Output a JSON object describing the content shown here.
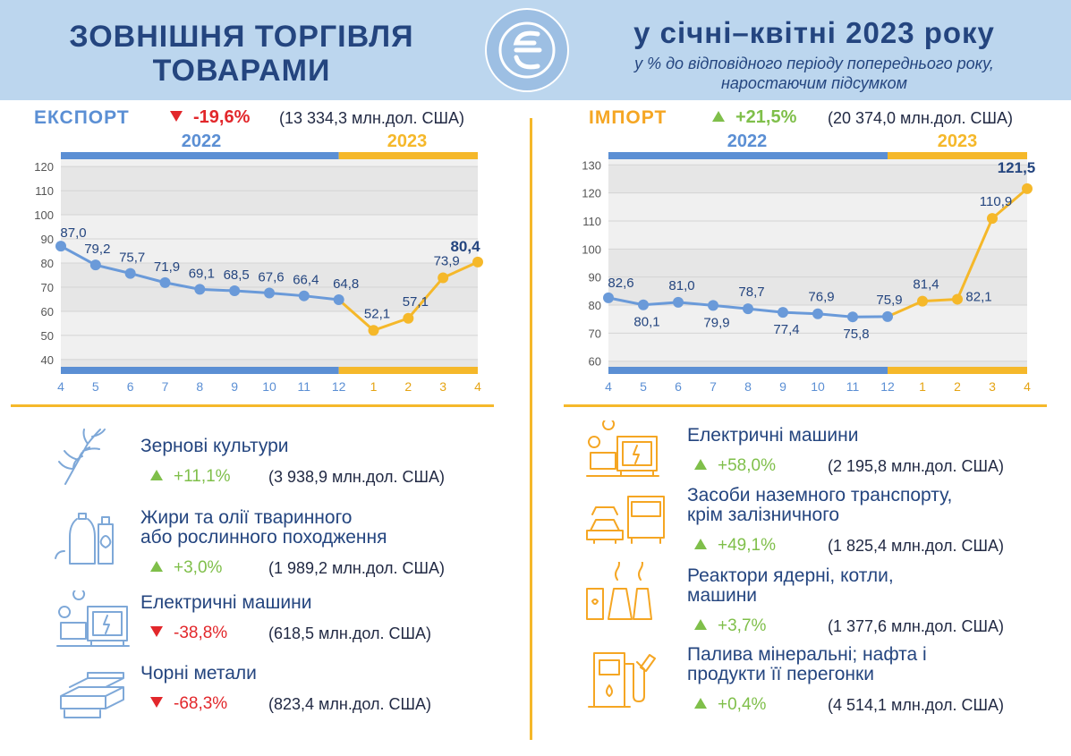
{
  "header": {
    "title_line1": "ЗОВНІШНЯ ТОРГІВЛЯ",
    "title_line2": "ТОВАРАМИ",
    "period": "у січні–квітні 2023 року",
    "subtitle_line1": "у % до відповідного періоду попереднього року,",
    "subtitle_line2": "наростаючим підсумком"
  },
  "colors": {
    "blue": "#5b8fd4",
    "orange": "#f5b82a",
    "navy": "#24457f",
    "red": "#e2272b",
    "green": "#7fbf4a"
  },
  "export": {
    "title": "ЕКСПОРТ",
    "change": "-19,6%",
    "total": "(13 334,3 млн.дол. США)",
    "year_2022": "2022",
    "year_2023": "2023",
    "items": [
      {
        "name_line1": "Зернові культури",
        "name_line2": "",
        "direction": "up",
        "pct": "+11,1%",
        "value": "(3 938,9 млн.дол. США)",
        "icon": "wheat-icon"
      },
      {
        "name_line1": "Жири та олії тваринного",
        "name_line2": "або рослинного походження",
        "direction": "up",
        "pct": "+3,0%",
        "value": "(1 989,2 млн.дол. США)",
        "icon": "oil-bottle-icon"
      },
      {
        "name_line1": "Електричні машини",
        "name_line2": "",
        "direction": "down",
        "pct": "-38,8%",
        "value": "(618,5 млн.дол. США)",
        "icon": "generator-icon"
      },
      {
        "name_line1": "Чорні метали",
        "name_line2": "",
        "direction": "down",
        "pct": "-68,3%",
        "value": "(823,4 млн.дол. США)",
        "icon": "metal-beams-icon"
      }
    ]
  },
  "import": {
    "title": "ІМПОРТ",
    "change": "+21,5%",
    "total": "(20 374,0 млн.дол. США)",
    "year_2022": "2022",
    "year_2023": "2023",
    "items": [
      {
        "name_line1": "Електричні машини",
        "name_line2": "",
        "direction": "up",
        "pct": "+58,0%",
        "value": "(2 195,8 млн.дол. США)",
        "icon": "generator-icon"
      },
      {
        "name_line1": "Засоби наземного транспорту,",
        "name_line2": "крім залізничного",
        "direction": "up",
        "pct": "+49,1%",
        "value": "(1 825,4 млн.дол. США)",
        "icon": "vehicles-icon"
      },
      {
        "name_line1": "Реактори ядерні, котли,",
        "name_line2": "машини",
        "direction": "up",
        "pct": "+3,7%",
        "value": "(1 377,6 млн.дол. США)",
        "icon": "power-plant-icon"
      },
      {
        "name_line1": "Палива мінеральні; нафта і",
        "name_line2": "продукти її перегонки",
        "direction": "up",
        "pct": "+0,4%",
        "value": "(4 514,1 млн.дол. США)",
        "icon": "fuel-pump-icon"
      }
    ]
  },
  "chart_data": [
    {
      "type": "line",
      "name": "export",
      "x": [
        "4",
        "5",
        "6",
        "7",
        "8",
        "9",
        "10",
        "11",
        "12",
        "1",
        "2",
        "3",
        "4"
      ],
      "values": [
        87.0,
        79.2,
        75.7,
        71.9,
        69.1,
        68.5,
        67.6,
        66.4,
        64.8,
        52.1,
        57.1,
        73.9,
        80.4
      ],
      "labels": [
        "87,0",
        "79,2",
        "75,7",
        "71,9",
        "69,1",
        "68,5",
        "67,6",
        "66,4",
        "64,8",
        "52,1",
        "57,1",
        "73,9",
        "80,4"
      ],
      "year_split_index": 8,
      "yticks": [
        "40",
        "50",
        "60",
        "70",
        "80",
        "90",
        "100",
        "110",
        "120"
      ],
      "ylim": [
        37,
        123
      ],
      "grid": true
    },
    {
      "type": "line",
      "name": "import",
      "x": [
        "4",
        "5",
        "6",
        "7",
        "8",
        "9",
        "10",
        "11",
        "12",
        "1",
        "2",
        "3",
        "4"
      ],
      "values": [
        82.6,
        80.1,
        81.0,
        79.9,
        78.7,
        77.4,
        76.9,
        75.8,
        75.9,
        81.4,
        82.1,
        110.9,
        121.5
      ],
      "labels": [
        "82,6",
        "80,1",
        "81,0",
        "79,9",
        "78,7",
        "77,4",
        "76,9",
        "75,8",
        "75,9",
        "81,4",
        "82,1",
        "110,9",
        "121,5"
      ],
      "year_split_index": 8,
      "yticks": [
        "60",
        "70",
        "80",
        "90",
        "100",
        "110",
        "120",
        "130"
      ],
      "ylim": [
        58,
        132
      ],
      "grid": true
    }
  ]
}
